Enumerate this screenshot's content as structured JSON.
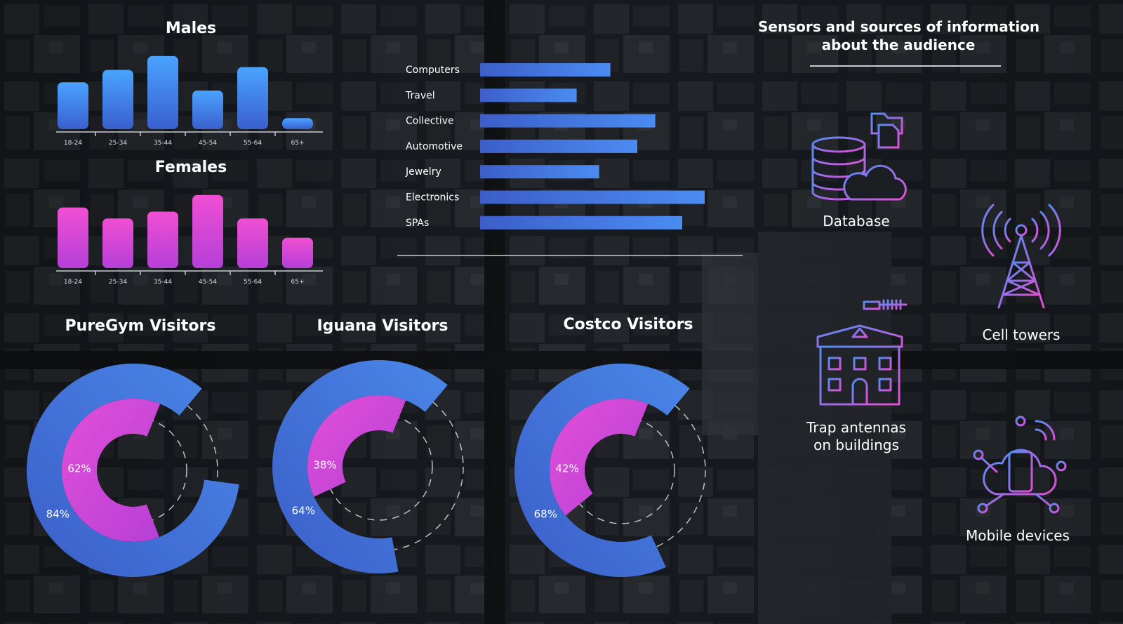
{
  "colors": {
    "male_bar_top": "#4aa3ff",
    "male_bar_bottom": "#3a5fcf",
    "female_bar_top": "#f04fd2",
    "female_bar_bottom": "#b43fd8",
    "hbar_left": "#3d5ec9",
    "hbar_right": "#4b8cf2",
    "ring_outer": "#4a86e8",
    "ring_inner": "#d84fd6",
    "divider": "#c8ccd4"
  },
  "chart_data": [
    {
      "type": "bar",
      "id": "males",
      "title": "Males",
      "categories": [
        "18-24",
        "25-34",
        "35-44",
        "45-54",
        "55-64",
        "65+"
      ],
      "values": [
        68,
        86,
        106,
        56,
        90,
        16
      ],
      "ylim": [
        0,
        110
      ]
    },
    {
      "type": "bar",
      "id": "females",
      "title": "Females",
      "categories": [
        "18-24",
        "25-34",
        "35-44",
        "45-54",
        "55-64",
        "65+"
      ],
      "values": [
        88,
        72,
        82,
        106,
        72,
        44
      ],
      "ylim": [
        0,
        110
      ]
    },
    {
      "type": "bar",
      "orientation": "horizontal",
      "id": "interests",
      "categories": [
        "Computers",
        "Travel",
        "Collective",
        "Automotive",
        "Jewelry",
        "Electronics",
        "SPAs"
      ],
      "values": [
        58,
        43,
        78,
        70,
        53,
        100,
        90
      ],
      "xlim": [
        0,
        100
      ]
    },
    {
      "type": "pie",
      "id": "puregym",
      "title": "PureGym Visitors",
      "series": [
        {
          "label": "84%",
          "value": 84
        },
        {
          "label": "62%",
          "value": 62
        }
      ]
    },
    {
      "type": "pie",
      "id": "iguana",
      "title": "Iguana Visitors",
      "series": [
        {
          "label": "64%",
          "value": 64
        },
        {
          "label": "38%",
          "value": 38
        }
      ]
    },
    {
      "type": "pie",
      "id": "costco",
      "title": "Costco Visitors",
      "series": [
        {
          "label": "68%",
          "value": 68
        },
        {
          "label": "42%",
          "value": 42
        }
      ]
    }
  ],
  "sensors": {
    "title_line1": "Sensors and sources of information",
    "title_line2": "about the audience",
    "items": [
      {
        "label": "Database",
        "icon": "database-cloud-icon"
      },
      {
        "label": "Cell towers",
        "icon": "cell-tower-icon"
      },
      {
        "label_line1": "Trap antennas",
        "label_line2": "on buildings",
        "icon": "building-antenna-icon"
      },
      {
        "label": "Mobile devices",
        "icon": "mobile-cloud-icon"
      }
    ]
  }
}
